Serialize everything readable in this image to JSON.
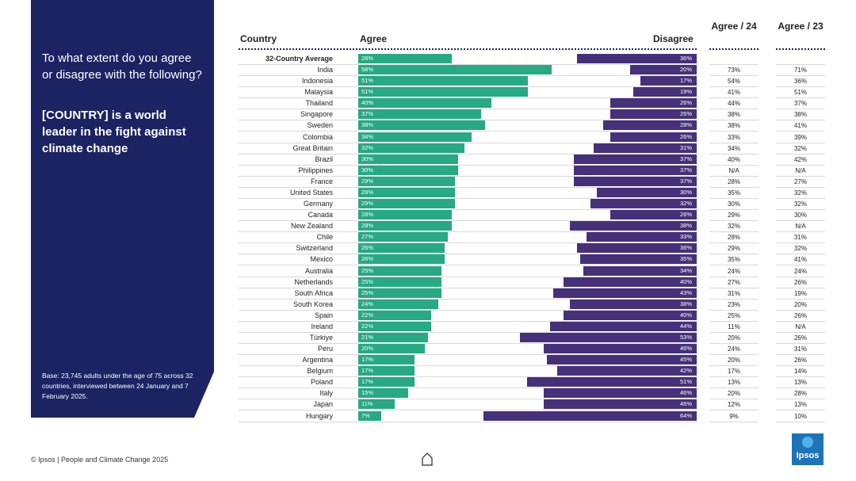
{
  "panel": {
    "question": "To what extent do you agree or disagree with the following?",
    "statement": "[COUNTRY] is a world leader in the fight against climate change",
    "base_note": "Base: 23,745 adults under the age of 75 across 32 countries, interviewed between 24 January and 7 February 2025."
  },
  "footer": {
    "text": "© Ipsos | People and Climate Change 2025"
  },
  "logo": {
    "text": "Ipsos"
  },
  "colors": {
    "panel": "#1b2363",
    "agree": "#27a983",
    "disagree": "#46307a"
  },
  "chart_data": {
    "type": "bar",
    "title": "[COUNTRY] is a world leader in the fight against climate change",
    "headers": {
      "country": "Country",
      "agree": "Agree",
      "disagree": "Disagree",
      "agree24": "Agree / 24",
      "agree23": "Agree / 23"
    },
    "xlim": [
      0,
      100
    ],
    "rows": [
      {
        "country": "32-Country Average",
        "agree": 28,
        "disagree": 36,
        "agree24": "",
        "agree23": ""
      },
      {
        "country": "India",
        "agree": 58,
        "disagree": 20,
        "agree24": "73%",
        "agree23": "71%"
      },
      {
        "country": "Indonesia",
        "agree": 51,
        "disagree": 17,
        "agree24": "54%",
        "agree23": "36%"
      },
      {
        "country": "Malaysia",
        "agree": 51,
        "disagree": 19,
        "agree24": "41%",
        "agree23": "51%"
      },
      {
        "country": "Thailand",
        "agree": 40,
        "disagree": 26,
        "agree24": "44%",
        "agree23": "37%"
      },
      {
        "country": "Singapore",
        "agree": 37,
        "disagree": 26,
        "agree24": "38%",
        "agree23": "38%"
      },
      {
        "country": "Sweden",
        "agree": 38,
        "disagree": 28,
        "agree24": "38%",
        "agree23": "41%"
      },
      {
        "country": "Colombia",
        "agree": 34,
        "disagree": 26,
        "agree24": "33%",
        "agree23": "39%"
      },
      {
        "country": "Great Britain",
        "agree": 32,
        "disagree": 31,
        "agree24": "34%",
        "agree23": "32%"
      },
      {
        "country": "Brazil",
        "agree": 30,
        "disagree": 37,
        "agree24": "40%",
        "agree23": "42%"
      },
      {
        "country": "Philippines",
        "agree": 30,
        "disagree": 37,
        "agree24": "N/A",
        "agree23": "N/A"
      },
      {
        "country": "France",
        "agree": 29,
        "disagree": 37,
        "agree24": "28%",
        "agree23": "27%"
      },
      {
        "country": "United States",
        "agree": 29,
        "disagree": 30,
        "agree24": "35%",
        "agree23": "32%"
      },
      {
        "country": "Germany",
        "agree": 29,
        "disagree": 32,
        "agree24": "30%",
        "agree23": "32%"
      },
      {
        "country": "Canada",
        "agree": 28,
        "disagree": 26,
        "agree24": "29%",
        "agree23": "30%"
      },
      {
        "country": "New Zealand",
        "agree": 28,
        "disagree": 38,
        "agree24": "32%",
        "agree23": "N/A"
      },
      {
        "country": "Chile",
        "agree": 27,
        "disagree": 33,
        "agree24": "28%",
        "agree23": "31%"
      },
      {
        "country": "Switzerland",
        "agree": 26,
        "disagree": 36,
        "agree24": "29%",
        "agree23": "32%"
      },
      {
        "country": "Mexico",
        "agree": 26,
        "disagree": 35,
        "agree24": "35%",
        "agree23": "41%"
      },
      {
        "country": "Australia",
        "agree": 25,
        "disagree": 34,
        "agree24": "24%",
        "agree23": "24%"
      },
      {
        "country": "Netherlands",
        "agree": 25,
        "disagree": 40,
        "agree24": "27%",
        "agree23": "26%"
      },
      {
        "country": "South Africa",
        "agree": 25,
        "disagree": 43,
        "agree24": "31%",
        "agree23": "19%"
      },
      {
        "country": "South Korea",
        "agree": 24,
        "disagree": 38,
        "agree24": "23%",
        "agree23": "20%"
      },
      {
        "country": "Spain",
        "agree": 22,
        "disagree": 40,
        "agree24": "25%",
        "agree23": "26%"
      },
      {
        "country": "Ireland",
        "agree": 22,
        "disagree": 44,
        "agree24": "11%",
        "agree23": "N/A"
      },
      {
        "country": "Türkiye",
        "agree": 21,
        "disagree": 53,
        "agree24": "20%",
        "agree23": "26%"
      },
      {
        "country": "Peru",
        "agree": 20,
        "disagree": 46,
        "agree24": "24%",
        "agree23": "31%"
      },
      {
        "country": "Argentina",
        "agree": 17,
        "disagree": 45,
        "agree24": "20%",
        "agree23": "26%"
      },
      {
        "country": "Belgium",
        "agree": 17,
        "disagree": 42,
        "agree24": "17%",
        "agree23": "14%"
      },
      {
        "country": "Poland",
        "agree": 17,
        "disagree": 51,
        "agree24": "13%",
        "agree23": "13%"
      },
      {
        "country": "Italy",
        "agree": 15,
        "disagree": 46,
        "agree24": "20%",
        "agree23": "28%"
      },
      {
        "country": "Japan",
        "agree": 11,
        "disagree": 46,
        "agree24": "12%",
        "agree23": "13%"
      },
      {
        "country": "Hungary",
        "agree": 7,
        "disagree": 64,
        "agree24": "9%",
        "agree23": "10%"
      }
    ]
  }
}
